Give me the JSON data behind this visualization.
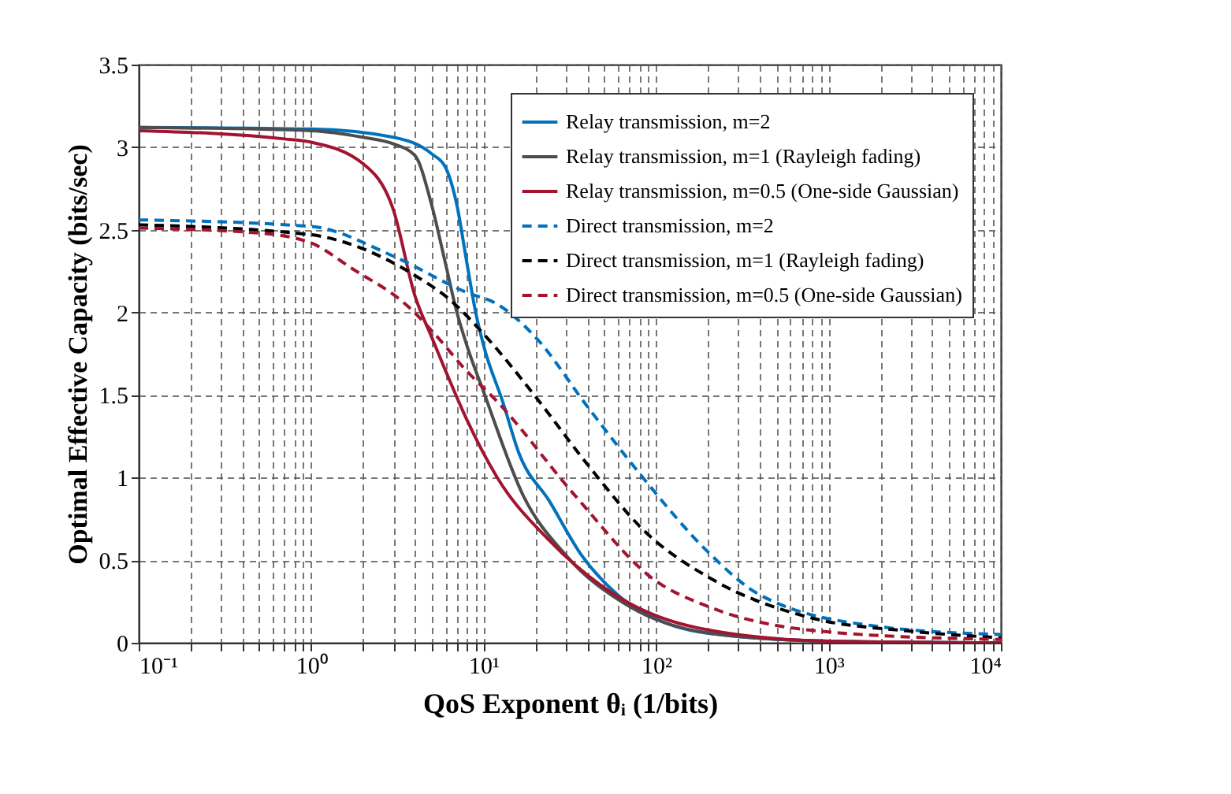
{
  "chart_data": {
    "type": "line",
    "xlabel": "QoS Exponent θᵢ (1/bits)",
    "ylabel": "Optimal Effective Capacity (bits/sec)",
    "log": "x",
    "grid": true,
    "legend": "top right",
    "xlim": [
      0.1,
      10000
    ],
    "ylim": [
      0,
      3.5
    ],
    "xticks": [
      {
        "value": 0.1,
        "label": "10⁻¹"
      },
      {
        "value": 0.2,
        "label": null
      },
      {
        "value": 0.3,
        "label": null
      },
      {
        "value": 0.4,
        "label": null
      },
      {
        "value": 0.5,
        "label": null
      },
      {
        "value": 0.6,
        "label": null
      },
      {
        "value": 0.7,
        "label": null
      },
      {
        "value": 0.8,
        "label": null
      },
      {
        "value": 0.9,
        "label": null
      },
      {
        "value": 1,
        "label": "10⁰"
      },
      {
        "value": 2,
        "label": null
      },
      {
        "value": 3,
        "label": null
      },
      {
        "value": 4,
        "label": null
      },
      {
        "value": 5,
        "label": null
      },
      {
        "value": 6,
        "label": null
      },
      {
        "value": 7,
        "label": null
      },
      {
        "value": 8,
        "label": null
      },
      {
        "value": 9,
        "label": null
      },
      {
        "value": 10,
        "label": "10¹"
      },
      {
        "value": 20,
        "label": null
      },
      {
        "value": 30,
        "label": null
      },
      {
        "value": 40,
        "label": null
      },
      {
        "value": 50,
        "label": null
      },
      {
        "value": 60,
        "label": null
      },
      {
        "value": 70,
        "label": null
      },
      {
        "value": 80,
        "label": null
      },
      {
        "value": 90,
        "label": null
      },
      {
        "value": 100,
        "label": "10²"
      },
      {
        "value": 200,
        "label": null
      },
      {
        "value": 300,
        "label": null
      },
      {
        "value": 400,
        "label": null
      },
      {
        "value": 500,
        "label": null
      },
      {
        "value": 600,
        "label": null
      },
      {
        "value": 700,
        "label": null
      },
      {
        "value": 800,
        "label": null
      },
      {
        "value": 900,
        "label": null
      },
      {
        "value": 1000,
        "label": "10³"
      },
      {
        "value": 2000,
        "label": null
      },
      {
        "value": 3000,
        "label": null
      },
      {
        "value": 4000,
        "label": null
      },
      {
        "value": 5000,
        "label": null
      },
      {
        "value": 6000,
        "label": null
      },
      {
        "value": 7000,
        "label": null
      },
      {
        "value": 8000,
        "label": null
      },
      {
        "value": 9000,
        "label": null
      },
      {
        "value": 10000,
        "label": "10⁴"
      }
    ],
    "yticks": [
      0,
      0.5,
      1,
      1.5,
      2,
      2.5,
      3,
      3.5
    ],
    "series": [
      {
        "name": "Relay transmission, m=2",
        "color": "#0072bd",
        "line_style": "solid",
        "x": [
          0.1,
          1,
          3,
          5,
          6,
          7,
          8,
          9,
          10,
          13,
          16,
          24,
          37,
          60,
          114,
          280,
          1000,
          10000
        ],
        "values": [
          3.12,
          3.11,
          3.06,
          2.96,
          2.88,
          2.65,
          2.3,
          2.0,
          1.8,
          1.45,
          1.15,
          0.86,
          0.53,
          0.29,
          0.12,
          0.04,
          0.01,
          0
        ]
      },
      {
        "name": "Relay transmission, m=1 (Rayleigh fading)",
        "color": "#4d4d4d",
        "line_style": "solid",
        "x": [
          0.1,
          1,
          2,
          3,
          4,
          5,
          6,
          7,
          8,
          10,
          17,
          30,
          70,
          200,
          1000,
          10000
        ],
        "values": [
          3.12,
          3.1,
          3.06,
          3.02,
          2.95,
          2.65,
          2.3,
          2.0,
          1.8,
          1.52,
          0.89,
          0.53,
          0.22,
          0.06,
          0.01,
          0
        ]
      },
      {
        "name": "Relay transmission, m=0.5 (One-side Gaussian)",
        "color": "#a2142f",
        "line_style": "solid",
        "x": [
          0.1,
          0.7,
          1,
          2,
          3,
          4,
          5,
          6,
          8,
          12,
          24,
          60,
          175,
          1000,
          10000
        ],
        "values": [
          3.1,
          3.05,
          3.03,
          2.9,
          2.62,
          2.1,
          1.85,
          1.65,
          1.35,
          1.0,
          0.62,
          0.28,
          0.09,
          0.01,
          0
        ]
      },
      {
        "name": "Direct transmission, m=2",
        "color": "#0072bd",
        "line_style": "dashed",
        "x": [
          0.1,
          1,
          3,
          8,
          12,
          20,
          40,
          87,
          200,
          400,
          1900,
          10000
        ],
        "values": [
          2.56,
          2.52,
          2.34,
          2.12,
          2.05,
          1.85,
          1.43,
          0.98,
          0.55,
          0.29,
          0.1,
          0.05
        ]
      },
      {
        "name": "Direct transmission, m=1 (Rayleigh fading)",
        "color": "#000000",
        "line_style": "dashed",
        "x": [
          0.1,
          1,
          1.5,
          4.5,
          6,
          10.6,
          20,
          40,
          87,
          215,
          800,
          3000,
          10000
        ],
        "values": [
          2.53,
          2.47,
          2.43,
          2.19,
          2.1,
          1.84,
          1.49,
          1.08,
          0.67,
          0.38,
          0.15,
          0.07,
          0.03
        ]
      },
      {
        "name": "Direct transmission, m=0.5 (One-side Gaussian)",
        "color": "#a2142f",
        "line_style": "dashed",
        "x": [
          0.1,
          0.5,
          1,
          1.7,
          3.7,
          5.2,
          7.9,
          12,
          34,
          98,
          200,
          1150,
          10000
        ],
        "values": [
          2.51,
          2.48,
          2.42,
          2.27,
          2.03,
          1.87,
          1.65,
          1.46,
          0.89,
          0.38,
          0.22,
          0.06,
          0.02
        ]
      }
    ]
  }
}
